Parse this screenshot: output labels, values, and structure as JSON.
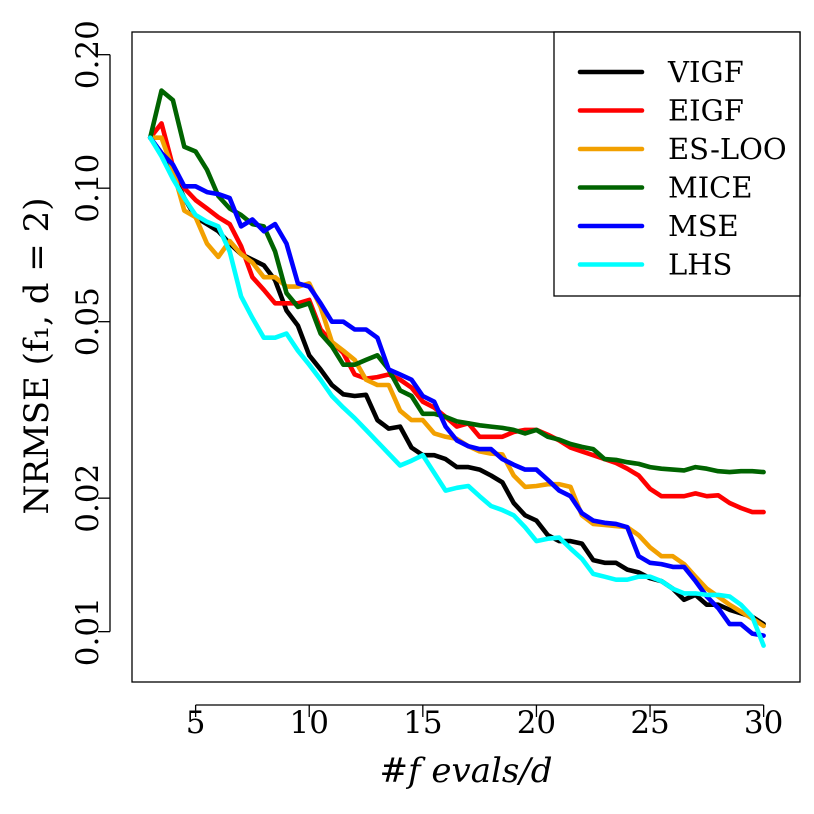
{
  "chart_data": {
    "type": "line",
    "xlabel": "#f  evals/d",
    "ylabel": "NRMSE (f₁, d = 2)",
    "xlim": [
      2.2,
      31.6
    ],
    "ylim": [
      0.0077,
      0.225
    ],
    "ylog": true,
    "xticks": [
      5,
      10,
      15,
      20,
      25,
      30
    ],
    "yticks": [
      0.01,
      0.02,
      0.05,
      0.1,
      0.2
    ],
    "ytick_labels": [
      "0.01",
      "0.02",
      "0.05",
      "0.10",
      "0.20"
    ],
    "grid": false,
    "legend_position": "top-right",
    "series": [
      {
        "name": "VIGF",
        "color": "#000000",
        "x": [
          3,
          3.5,
          4,
          4.5,
          5,
          5.5,
          6,
          6.5,
          7,
          7.5,
          8,
          8.5,
          9,
          9.5,
          10,
          10.5,
          11,
          11.5,
          12,
          12.5,
          13,
          13.5,
          14,
          14.5,
          15,
          15.5,
          16,
          16.5,
          17,
          17.5,
          18,
          18.5,
          19,
          19.5,
          20,
          20.5,
          21,
          21.5,
          22,
          22.5,
          23,
          23.5,
          24,
          24.5,
          25,
          25.5,
          26,
          26.5,
          27,
          27.5,
          28,
          28.5,
          29,
          29.5,
          30
        ],
        "values": [
          0.13,
          0.12,
          0.108,
          0.095,
          0.086,
          0.083,
          0.08,
          0.075,
          0.071,
          0.069,
          0.067,
          0.062,
          0.053,
          0.049,
          0.042,
          0.039,
          0.036,
          0.0343,
          0.034,
          0.0342,
          0.03,
          0.0287,
          0.029,
          0.026,
          0.025,
          0.025,
          0.0245,
          0.0235,
          0.0235,
          0.0232,
          0.0225,
          0.0217,
          0.0195,
          0.0183,
          0.0178,
          0.0165,
          0.016,
          0.016,
          0.0158,
          0.0145,
          0.0143,
          0.0143,
          0.0138,
          0.0136,
          0.0132,
          0.013,
          0.0125,
          0.0118,
          0.0121,
          0.0115,
          0.0115,
          0.0112,
          0.011,
          0.0108,
          0.0104
        ]
      },
      {
        "name": "EIGF",
        "color": "#ff0000",
        "x": [
          3,
          3.5,
          4,
          4.5,
          5,
          5.5,
          6,
          6.5,
          7,
          7.5,
          8,
          8.5,
          9,
          9.5,
          10,
          10.5,
          11,
          11.5,
          12,
          12.5,
          13,
          13.5,
          14,
          14.5,
          15,
          15.5,
          16,
          16.5,
          17,
          17.5,
          18,
          18.5,
          19,
          19.5,
          20,
          20.5,
          21,
          21.5,
          22,
          22.5,
          23,
          23.5,
          24,
          24.5,
          25,
          25.5,
          26,
          26.5,
          27,
          27.5,
          28,
          28.5,
          29,
          29.5,
          30
        ],
        "values": [
          0.13,
          0.14,
          0.112,
          0.1,
          0.094,
          0.09,
          0.086,
          0.083,
          0.074,
          0.063,
          0.059,
          0.055,
          0.055,
          0.055,
          0.056,
          0.048,
          0.045,
          0.0425,
          0.038,
          0.0372,
          0.0375,
          0.038,
          0.037,
          0.0355,
          0.033,
          0.032,
          0.0305,
          0.029,
          0.0295,
          0.0275,
          0.0275,
          0.0275,
          0.0282,
          0.0285,
          0.0285,
          0.0278,
          0.027,
          0.026,
          0.0255,
          0.025,
          0.0245,
          0.024,
          0.0233,
          0.0225,
          0.021,
          0.0202,
          0.0202,
          0.0202,
          0.0205,
          0.0202,
          0.0203,
          0.0195,
          0.019,
          0.0186,
          0.0186
        ]
      },
      {
        "name": "ES-LOO",
        "color": "#f2a000",
        "x": [
          3,
          3.5,
          4,
          4.5,
          5,
          5.5,
          6,
          6.5,
          7,
          7.5,
          8,
          8.5,
          9,
          9.5,
          10,
          10.5,
          11,
          11.5,
          12,
          12.5,
          13,
          13.5,
          14,
          14.5,
          15,
          15.5,
          16,
          16.5,
          17,
          17.5,
          18,
          18.5,
          19,
          19.5,
          20,
          20.5,
          21,
          21.5,
          22,
          22.5,
          23,
          23.5,
          24,
          24.5,
          25,
          25.5,
          26,
          26.5,
          27,
          27.5,
          28,
          28.5,
          29,
          29.5,
          30
        ],
        "values": [
          0.13,
          0.13,
          0.11,
          0.089,
          0.086,
          0.075,
          0.07,
          0.076,
          0.071,
          0.068,
          0.063,
          0.063,
          0.06,
          0.06,
          0.061,
          0.054,
          0.045,
          0.043,
          0.041,
          0.037,
          0.036,
          0.036,
          0.0315,
          0.03,
          0.03,
          0.028,
          0.0275,
          0.0272,
          0.0262,
          0.0255,
          0.0252,
          0.0251,
          0.0225,
          0.0212,
          0.0213,
          0.0215,
          0.0215,
          0.0212,
          0.0183,
          0.0175,
          0.0174,
          0.0173,
          0.0172,
          0.0165,
          0.0155,
          0.0148,
          0.0148,
          0.0142,
          0.0133,
          0.0125,
          0.012,
          0.0115,
          0.0111,
          0.0107,
          0.0103
        ]
      },
      {
        "name": "MICE",
        "color": "#006400",
        "x": [
          3,
          3.5,
          4,
          4.5,
          5,
          5.5,
          6,
          6.5,
          7,
          7.5,
          8,
          8.5,
          9,
          9.5,
          10,
          10.5,
          11,
          11.5,
          12,
          12.5,
          13,
          13.5,
          14,
          14.5,
          15,
          15.5,
          16,
          16.5,
          17,
          17.5,
          18,
          18.5,
          19,
          19.5,
          20,
          20.5,
          21,
          21.5,
          22,
          22.5,
          23,
          23.5,
          24,
          24.5,
          25,
          25.5,
          26,
          26.5,
          27,
          27.5,
          28,
          28.5,
          29,
          29.5,
          30
        ],
        "values": [
          0.13,
          0.166,
          0.158,
          0.124,
          0.121,
          0.11,
          0.096,
          0.09,
          0.087,
          0.083,
          0.082,
          0.072,
          0.058,
          0.054,
          0.055,
          0.047,
          0.044,
          0.04,
          0.04,
          0.041,
          0.042,
          0.039,
          0.035,
          0.034,
          0.031,
          0.031,
          0.0305,
          0.0298,
          0.0295,
          0.0292,
          0.029,
          0.0288,
          0.0285,
          0.028,
          0.0285,
          0.0275,
          0.0271,
          0.0265,
          0.0261,
          0.0258,
          0.0245,
          0.0244,
          0.0241,
          0.0239,
          0.0235,
          0.0233,
          0.0232,
          0.0231,
          0.0235,
          0.0233,
          0.023,
          0.0229,
          0.023,
          0.023,
          0.0229
        ]
      },
      {
        "name": "MSE",
        "color": "#0000ff",
        "x": [
          3,
          3.5,
          4,
          4.5,
          5,
          5.5,
          6,
          6.5,
          7,
          7.5,
          8,
          8.5,
          9,
          9.5,
          10,
          10.5,
          11,
          11.5,
          12,
          12.5,
          13,
          13.5,
          14,
          14.5,
          15,
          15.5,
          16,
          16.5,
          17,
          17.5,
          18,
          18.5,
          19,
          19.5,
          20,
          20.5,
          21,
          21.5,
          22,
          22.5,
          23,
          23.5,
          24,
          24.5,
          25,
          25.5,
          26,
          26.5,
          27,
          27.5,
          28,
          28.5,
          29,
          29.5,
          30
        ],
        "values": [
          0.13,
          0.12,
          0.113,
          0.101,
          0.101,
          0.098,
          0.097,
          0.095,
          0.082,
          0.085,
          0.08,
          0.083,
          0.075,
          0.061,
          0.06,
          0.055,
          0.05,
          0.05,
          0.048,
          0.048,
          0.046,
          0.039,
          0.038,
          0.037,
          0.034,
          0.033,
          0.029,
          0.027,
          0.0262,
          0.0258,
          0.0258,
          0.0245,
          0.0238,
          0.0232,
          0.0232,
          0.022,
          0.0208,
          0.0202,
          0.0185,
          0.0178,
          0.0176,
          0.0175,
          0.0172,
          0.0148,
          0.0143,
          0.0142,
          0.014,
          0.014,
          0.013,
          0.012,
          0.0113,
          0.0104,
          0.0104,
          0.0099,
          0.0098
        ]
      },
      {
        "name": "LHS",
        "color": "#00ffff",
        "x": [
          3,
          3.5,
          4,
          4.5,
          5,
          5.5,
          6,
          6.5,
          7,
          7.5,
          8,
          8.5,
          9,
          9.5,
          10,
          10.5,
          11,
          11.5,
          12,
          12.5,
          13,
          13.5,
          14,
          14.5,
          15,
          15.5,
          16,
          16.5,
          17,
          17.5,
          18,
          18.5,
          19,
          19.5,
          20,
          20.5,
          21,
          21.5,
          22,
          22.5,
          23,
          23.5,
          24,
          24.5,
          25,
          25.5,
          26,
          26.5,
          27,
          27.5,
          28,
          28.5,
          29,
          29.5,
          30
        ],
        "values": [
          0.13,
          0.118,
          0.105,
          0.095,
          0.087,
          0.084,
          0.082,
          0.072,
          0.057,
          0.051,
          0.046,
          0.046,
          0.047,
          0.043,
          0.04,
          0.037,
          0.034,
          0.032,
          0.0303,
          0.0285,
          0.0268,
          0.0252,
          0.0237,
          0.0243,
          0.025,
          0.0228,
          0.0208,
          0.0211,
          0.0213,
          0.0202,
          0.0192,
          0.0188,
          0.0183,
          0.0172,
          0.016,
          0.0162,
          0.0163,
          0.0154,
          0.0146,
          0.0135,
          0.0133,
          0.0131,
          0.0131,
          0.0133,
          0.0133,
          0.013,
          0.0125,
          0.0122,
          0.0122,
          0.0121,
          0.0121,
          0.012,
          0.0115,
          0.0108,
          0.0093
        ]
      }
    ]
  }
}
